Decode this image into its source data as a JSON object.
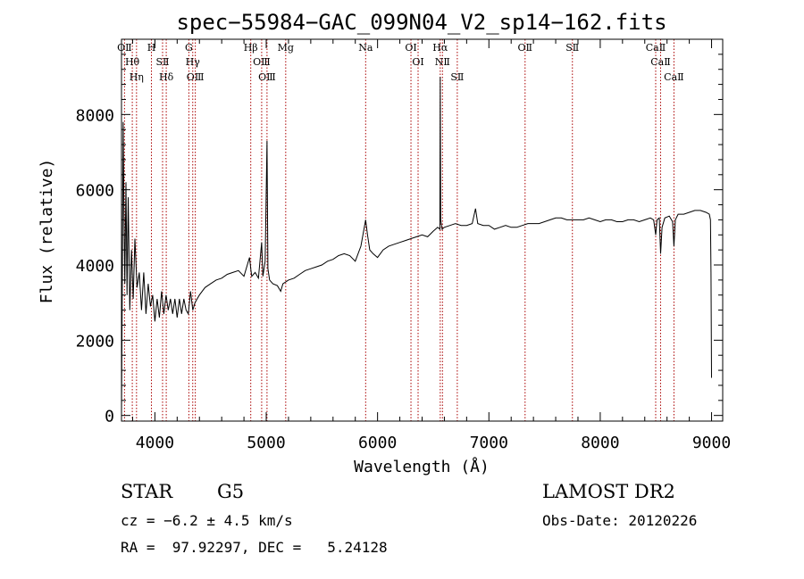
{
  "chart_data": {
    "type": "line",
    "title": "spec−55984−GAC_099N04_V2_sp14−162.fits",
    "xlabel": "Wavelength (Å)",
    "ylabel": "Flux (relative)",
    "xlim": [
      3700,
      9100
    ],
    "ylim": [
      -150,
      10000
    ],
    "x_ticks": [
      4000,
      5000,
      6000,
      7000,
      8000,
      9000
    ],
    "y_ticks": [
      0,
      2000,
      4000,
      6000,
      8000
    ],
    "grid": false,
    "series": [
      {
        "x": [
          3700,
          3715,
          3722,
          3730,
          3740,
          3750,
          3760,
          3775,
          3790,
          3805,
          3820,
          3840,
          3860,
          3880,
          3900,
          3920,
          3940,
          3960,
          3980,
          4000,
          4020,
          4040,
          4060,
          4080,
          4100,
          4120,
          4140,
          4160,
          4180,
          4200,
          4220,
          4240,
          4260,
          4280,
          4300,
          4320,
          4340,
          4360,
          4380,
          4400,
          4450,
          4500,
          4550,
          4600,
          4650,
          4700,
          4750,
          4800,
          4850,
          4861,
          4870,
          4900,
          4930,
          4959,
          4970,
          4990,
          5007,
          5015,
          5030,
          5060,
          5100,
          5130,
          5150,
          5200,
          5250,
          5300,
          5350,
          5400,
          5450,
          5500,
          5550,
          5600,
          5650,
          5700,
          5750,
          5800,
          5850,
          5893,
          5910,
          5930,
          5960,
          6000,
          6050,
          6100,
          6150,
          6200,
          6250,
          6300,
          6350,
          6400,
          6450,
          6500,
          6540,
          6560,
          6563,
          6567,
          6580,
          6600,
          6650,
          6700,
          6750,
          6800,
          6850,
          6880,
          6900,
          6950,
          7000,
          7050,
          7100,
          7150,
          7200,
          7250,
          7300,
          7350,
          7400,
          7450,
          7500,
          7550,
          7600,
          7650,
          7700,
          7750,
          7800,
          7850,
          7900,
          7950,
          8000,
          8050,
          8100,
          8150,
          8200,
          8250,
          8300,
          8350,
          8400,
          8450,
          8480,
          8498,
          8510,
          8530,
          8542,
          8555,
          8580,
          8620,
          8650,
          8662,
          8675,
          8700,
          8750,
          8800,
          8850,
          8900,
          8950,
          8980,
          8990,
          8995,
          9000
        ],
        "values": [
          0,
          7800,
          5500,
          3500,
          6200,
          3200,
          5800,
          2800,
          4400,
          3100,
          4700,
          3400,
          3800,
          2800,
          3800,
          2700,
          3500,
          2900,
          3200,
          2500,
          3100,
          2600,
          3300,
          2700,
          3200,
          2800,
          3100,
          2700,
          3100,
          2600,
          3100,
          2700,
          3100,
          2800,
          2700,
          3300,
          2800,
          3000,
          3100,
          3200,
          3400,
          3500,
          3600,
          3650,
          3750,
          3800,
          3850,
          3700,
          4200,
          3900,
          3700,
          3800,
          3650,
          4600,
          3700,
          4100,
          7300,
          3900,
          3600,
          3500,
          3450,
          3300,
          3500,
          3600,
          3650,
          3750,
          3850,
          3900,
          3950,
          4000,
          4100,
          4150,
          4250,
          4300,
          4250,
          4100,
          4500,
          5200,
          4800,
          4400,
          4300,
          4200,
          4400,
          4500,
          4550,
          4600,
          4650,
          4700,
          4750,
          4800,
          4750,
          4900,
          5000,
          4950,
          9000,
          5200,
          4950,
          5000,
          5050,
          5100,
          5050,
          5050,
          5100,
          5500,
          5100,
          5050,
          5050,
          4950,
          5000,
          5050,
          5000,
          5000,
          5050,
          5100,
          5100,
          5100,
          5150,
          5200,
          5250,
          5250,
          5200,
          5200,
          5200,
          5200,
          5250,
          5200,
          5150,
          5200,
          5200,
          5150,
          5150,
          5200,
          5200,
          5150,
          5200,
          5250,
          5200,
          4800,
          5200,
          5250,
          4300,
          5000,
          5250,
          5300,
          5150,
          4500,
          5200,
          5350,
          5350,
          5400,
          5450,
          5450,
          5400,
          5350,
          5200,
          3800,
          1000
        ]
      }
    ],
    "lines": [
      {
        "label": "OⅡ",
        "wavelength": 3727
      },
      {
        "label": "Hθ",
        "wavelength": 3797
      },
      {
        "label": "Hη",
        "wavelength": 3835
      },
      {
        "label": "H",
        "wavelength": 3969
      },
      {
        "label": "SⅡ",
        "wavelength": 4069
      },
      {
        "label": "Hδ",
        "wavelength": 4102
      },
      {
        "label": "Hγ",
        "wavelength": 4340
      },
      {
        "label": "G",
        "wavelength": 4305
      },
      {
        "label": "OⅢ",
        "wavelength": 4363
      },
      {
        "label": "Hβ",
        "wavelength": 4861
      },
      {
        "label": "OⅢ",
        "wavelength": 4959
      },
      {
        "label": "OⅢ",
        "wavelength": 5007
      },
      {
        "label": "Mg",
        "wavelength": 5175
      },
      {
        "label": "Na",
        "wavelength": 5893
      },
      {
        "label": "OⅠ",
        "wavelength": 6300
      },
      {
        "label": "OⅠ",
        "wavelength": 6364
      },
      {
        "label": "Hα",
        "wavelength": 6563
      },
      {
        "label": "NⅡ",
        "wavelength": 6583
      },
      {
        "label": "SⅡ",
        "wavelength": 6716
      },
      {
        "label": "OⅡ",
        "wavelength": 7325
      },
      {
        "label": "SⅡ",
        "wavelength": 7750
      },
      {
        "label": "CaⅡ",
        "wavelength": 8498
      },
      {
        "label": "CaⅡ",
        "wavelength": 8542
      },
      {
        "label": "CaⅡ",
        "wavelength": 8662
      }
    ]
  },
  "info": {
    "object_type": "STAR",
    "subclass": "G5",
    "cz": "cz = −6.2 ± 4.5 km/s",
    "coords": "RA =  97.92297, DEC =   5.24128",
    "survey": "LAMOST DR2",
    "obs_date": "Obs-Date: 20120226"
  },
  "colors": {
    "spectrum": "#000000",
    "line_marker": "#aa0000",
    "axes": "#000000"
  }
}
